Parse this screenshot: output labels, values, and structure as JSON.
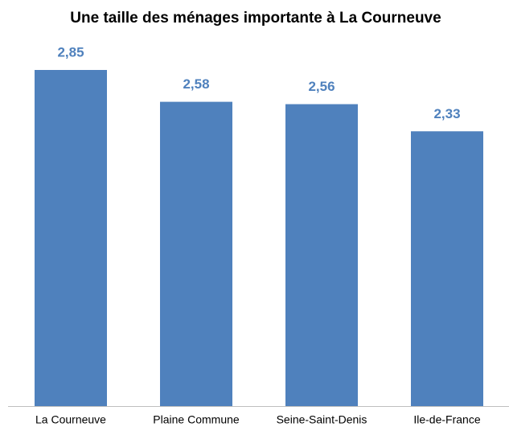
{
  "chart_data": {
    "type": "bar",
    "title": "Une taille des ménages importante à La Courneuve",
    "categories": [
      "La Courneuve",
      "Plaine Commune",
      "Seine-Saint-Denis",
      "Ile-de-France"
    ],
    "values": [
      2.85,
      2.58,
      2.56,
      2.33
    ],
    "value_labels": [
      "2,85",
      "2,58",
      "2,56",
      "2,33"
    ],
    "color": "#4f81bd",
    "ylim": [
      0,
      3
    ]
  }
}
